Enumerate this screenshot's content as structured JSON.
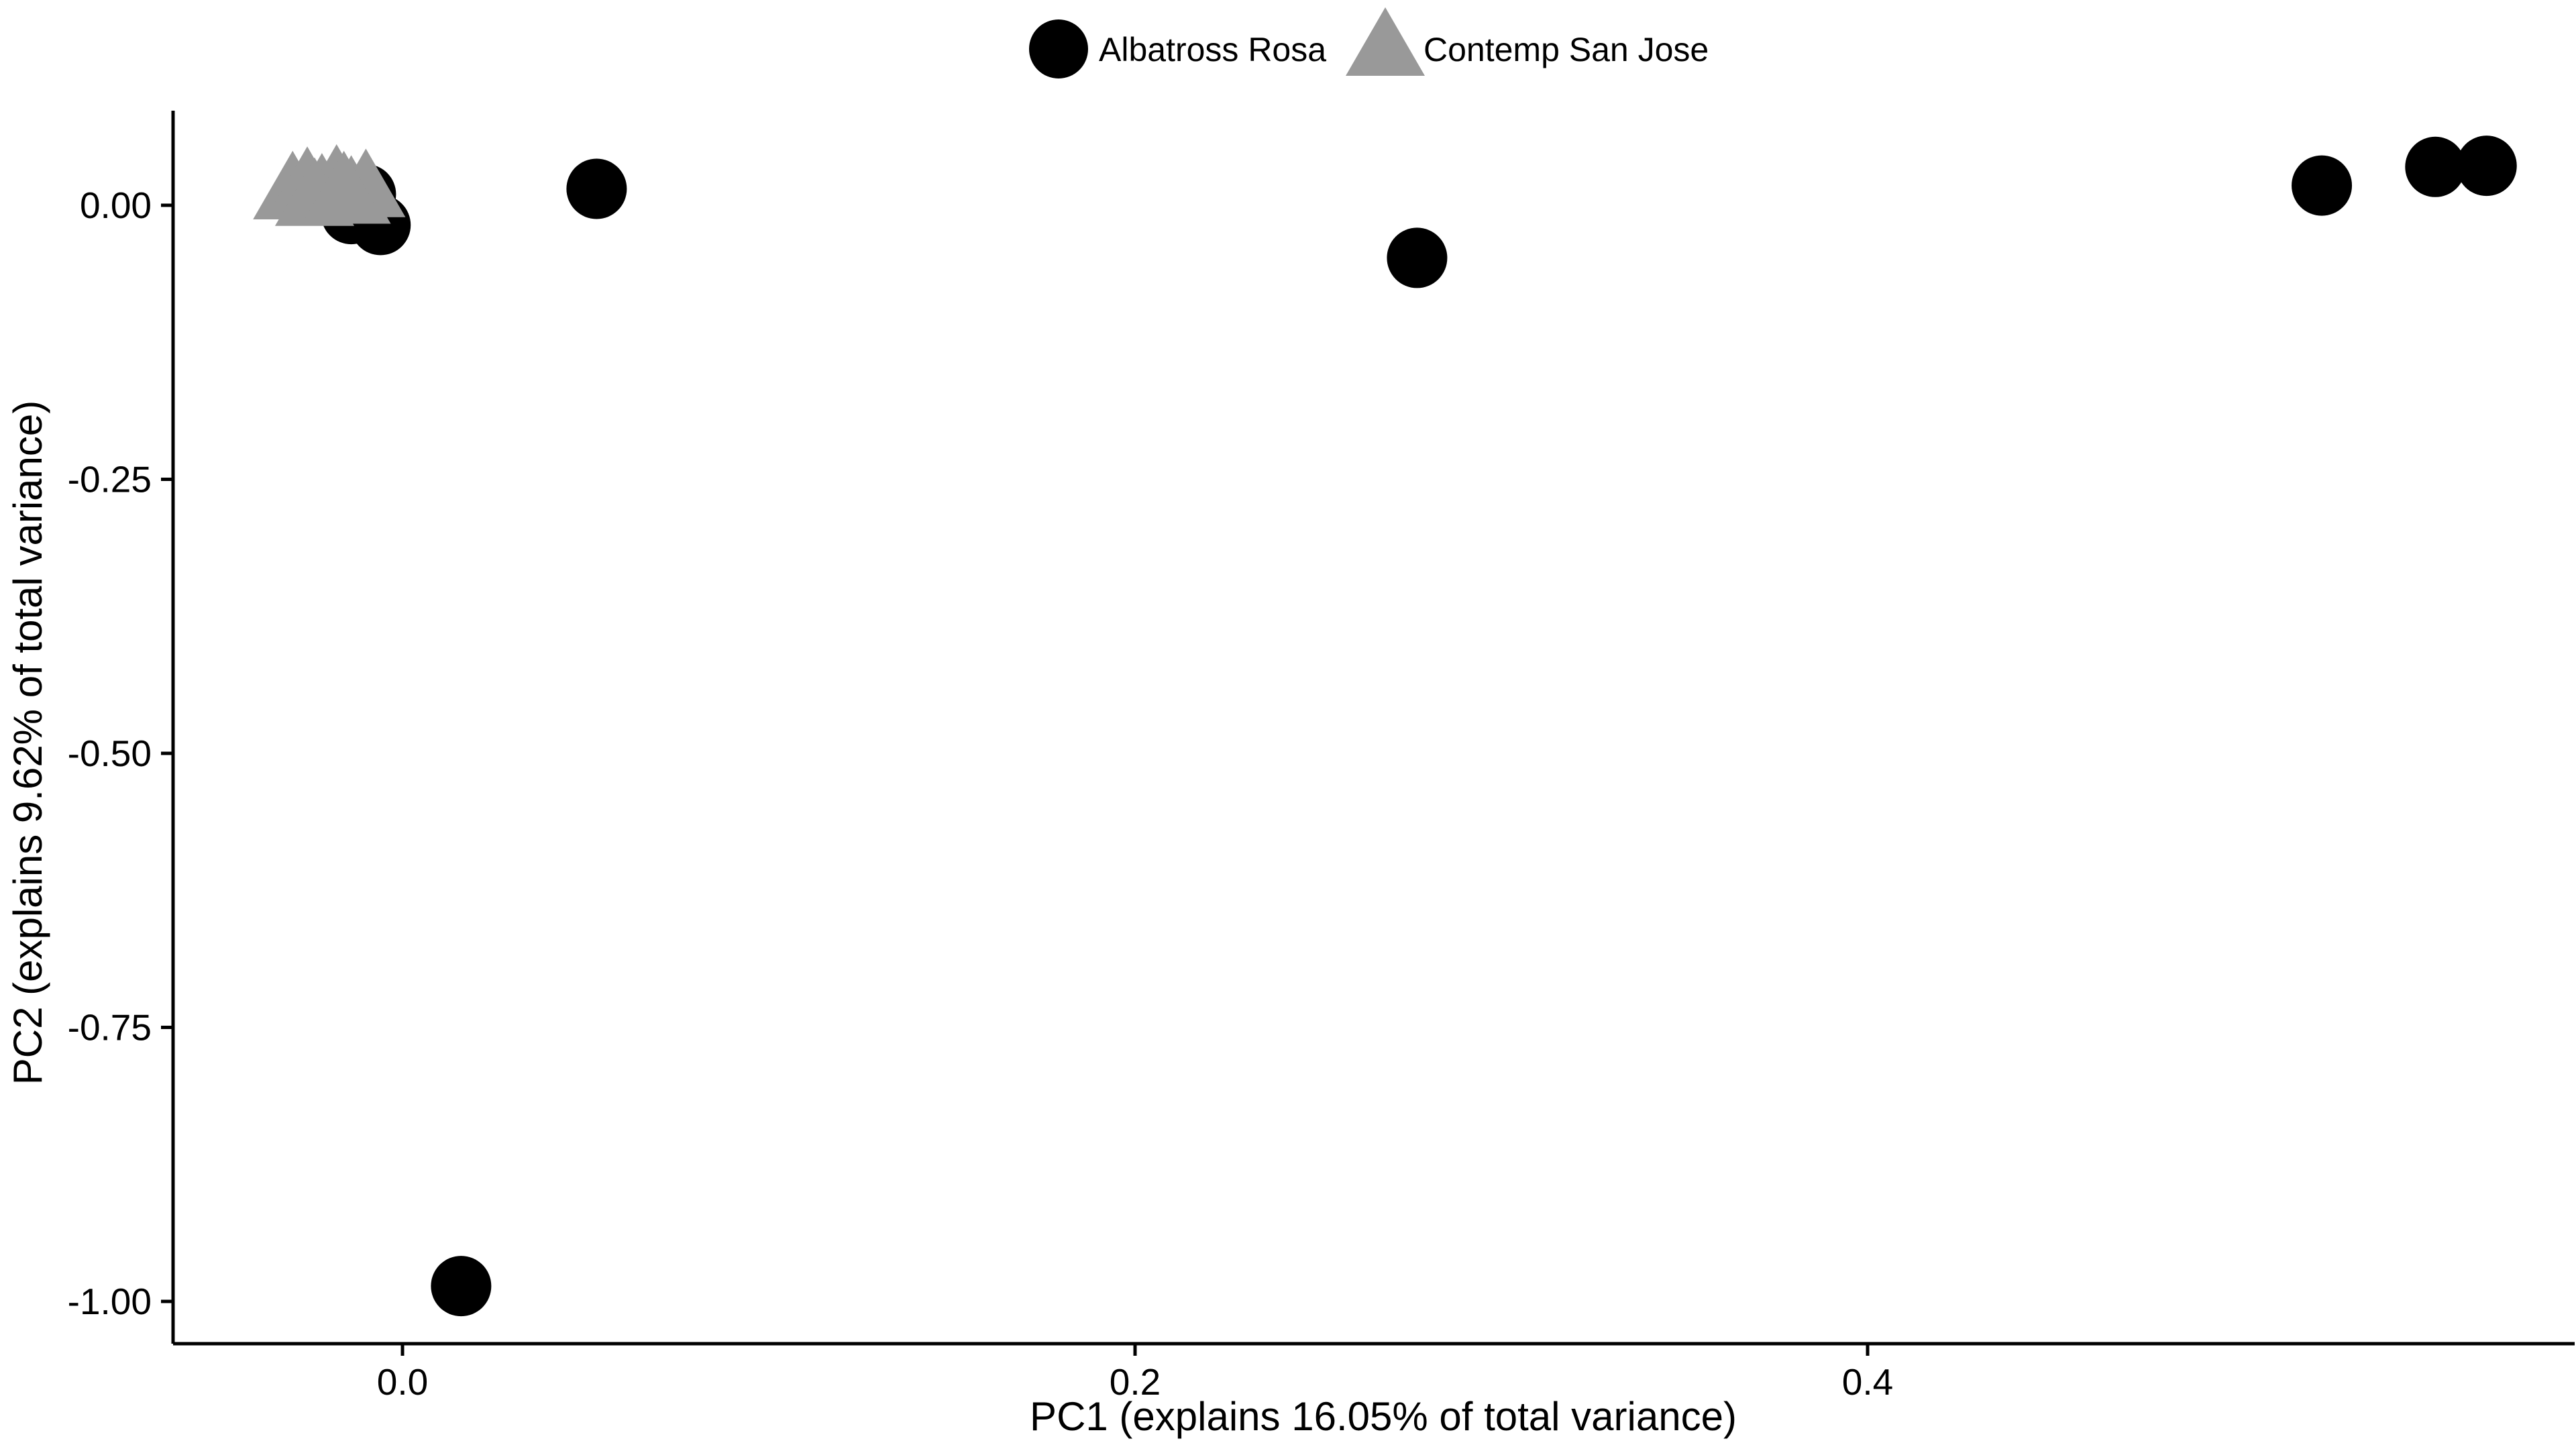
{
  "chart_data": {
    "type": "scatter",
    "title": "",
    "xlabel": "PC1 (explains 16.05% of total variance)",
    "ylabel": "PC2 (explains 9.62% of total variance)",
    "xlim": [
      -0.065,
      0.595
    ],
    "ylim": [
      -1.04,
      0.085
    ],
    "x_ticks": [
      0.0,
      0.2,
      0.4
    ],
    "x_tick_labels": [
      "0.0",
      "0.2",
      "0.4"
    ],
    "y_ticks": [
      0.0,
      -0.25,
      -0.5,
      -0.75,
      -1.0
    ],
    "y_tick_labels": [
      "0.00",
      "-0.25",
      "-0.50",
      "-0.75",
      "-1.00"
    ],
    "grid": false,
    "legend_position": "top",
    "series": [
      {
        "name": "Albatross Rosa",
        "marker": "circle",
        "color": "#000000",
        "points": [
          {
            "x": -0.01,
            "y": 0.01
          },
          {
            "x": -0.014,
            "y": -0.008
          },
          {
            "x": -0.006,
            "y": -0.018
          },
          {
            "x": 0.053,
            "y": 0.015
          },
          {
            "x": 0.277,
            "y": -0.048
          },
          {
            "x": 0.524,
            "y": 0.018
          },
          {
            "x": 0.555,
            "y": 0.035
          },
          {
            "x": 0.569,
            "y": 0.036
          },
          {
            "x": 0.016,
            "y": -0.986
          }
        ]
      },
      {
        "name": "Contemp San Jose",
        "marker": "triangle",
        "color": "#999999",
        "points": [
          {
            "x": -0.03,
            "y": 0.008
          },
          {
            "x": -0.026,
            "y": 0.012
          },
          {
            "x": -0.022,
            "y": 0.006
          },
          {
            "x": -0.018,
            "y": 0.014
          },
          {
            "x": -0.014,
            "y": 0.004
          },
          {
            "x": -0.01,
            "y": 0.01
          },
          {
            "x": -0.024,
            "y": 0.002
          },
          {
            "x": -0.016,
            "y": 0.008
          }
        ]
      }
    ]
  }
}
